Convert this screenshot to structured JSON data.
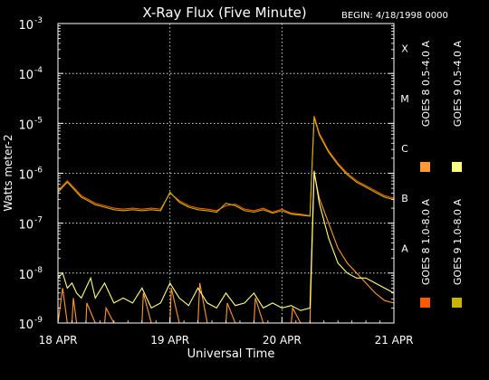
{
  "chart_data": {
    "type": "line",
    "title": "X-Ray Flux (Five Minute)",
    "begin_label": "BEGIN: 4/18/1998 0000",
    "xlabel": "Universal Time",
    "ylabel": "Watts meter-2",
    "x_ticks": [
      "18 APR",
      "19 APR",
      "20 APR",
      "21 APR"
    ],
    "xlim": [
      "1998-04-18 00:00",
      "1998-04-21 00:00"
    ],
    "y_scale": "log",
    "ylim": [
      1e-09,
      0.001
    ],
    "y_ticks": [
      {
        "label": "10",
        "exp": "-9"
      },
      {
        "label": "10",
        "exp": "-8"
      },
      {
        "label": "10",
        "exp": "-7"
      },
      {
        "label": "10",
        "exp": "-6"
      },
      {
        "label": "10",
        "exp": "-5"
      },
      {
        "label": "10",
        "exp": "-4"
      },
      {
        "label": "10",
        "exp": "-3"
      }
    ],
    "flare_classes": [
      "A",
      "B",
      "C",
      "M",
      "X"
    ],
    "grid": true,
    "legend_position": "right",
    "series": [
      {
        "name": "GOES 8 1.0-8.0 A",
        "color": "#ff5a00",
        "x_hours": [
          0,
          1,
          2,
          3,
          4,
          5,
          6,
          8,
          10,
          12,
          14,
          16,
          18,
          20,
          22,
          24,
          26,
          28,
          30,
          32,
          34,
          36,
          38,
          40,
          42,
          44,
          46,
          48,
          50,
          52,
          54,
          54.9,
          56,
          58,
          60,
          62,
          64,
          66,
          68,
          70,
          72
        ],
        "log10_flux": [
          -6.35,
          -6.25,
          -6.15,
          -6.25,
          -6.35,
          -6.45,
          -6.5,
          -6.6,
          -6.65,
          -6.7,
          -6.72,
          -6.7,
          -6.72,
          -6.7,
          -6.72,
          -6.4,
          -6.55,
          -6.65,
          -6.7,
          -6.72,
          -6.75,
          -6.65,
          -6.62,
          -6.72,
          -6.75,
          -6.7,
          -6.78,
          -6.72,
          -6.8,
          -6.82,
          -6.85,
          -4.85,
          -5.2,
          -5.55,
          -5.8,
          -6.0,
          -6.15,
          -6.25,
          -6.35,
          -6.45,
          -6.5
        ]
      },
      {
        "name": "GOES 8 0.5-4.0 A",
        "color": "#ff9a30",
        "x_hours": [
          0,
          1,
          2,
          3,
          3.3,
          4,
          6,
          6.2,
          8,
          10,
          10.3,
          12,
          14,
          18,
          18.3,
          20,
          22,
          24,
          24.3,
          26,
          28,
          30,
          30.4,
          32,
          34,
          36,
          36.3,
          38,
          40,
          42,
          42.3,
          44,
          46,
          48,
          50,
          50.3,
          52,
          54,
          54.9,
          56,
          58,
          60,
          62,
          64,
          66,
          68,
          70,
          72
        ],
        "log10_flux": [
          -9.0,
          -8.3,
          -9.0,
          -9.0,
          -8.5,
          -9.0,
          -9.0,
          -8.6,
          -9.0,
          -9.0,
          -8.7,
          -9.0,
          -9.0,
          -9.0,
          -8.4,
          -9.0,
          -9.0,
          -9.0,
          -8.3,
          -9.0,
          -9.0,
          -9.0,
          -8.2,
          -9.0,
          -9.0,
          -9.0,
          -8.6,
          -9.0,
          -9.0,
          -9.0,
          -8.5,
          -9.0,
          -9.0,
          -9.0,
          -9.0,
          -8.7,
          -9.0,
          -9.0,
          -6.0,
          -6.5,
          -7.0,
          -7.5,
          -7.8,
          -8.0,
          -8.2,
          -8.4,
          -8.55,
          -8.6
        ]
      },
      {
        "name": "GOES 9 1.0-8.0 A",
        "color": "#c8b400",
        "x_hours": [
          0,
          1,
          2,
          3,
          4,
          5,
          6,
          8,
          10,
          12,
          14,
          16,
          18,
          20,
          22,
          24,
          26,
          28,
          30,
          32,
          34,
          36,
          38,
          40,
          42,
          44,
          46,
          48,
          50,
          52,
          54,
          54.9,
          56,
          58,
          60,
          62,
          64,
          66,
          68,
          70,
          72
        ],
        "log10_flux": [
          -6.38,
          -6.28,
          -6.18,
          -6.28,
          -6.38,
          -6.48,
          -6.53,
          -6.63,
          -6.68,
          -6.73,
          -6.75,
          -6.73,
          -6.75,
          -6.73,
          -6.75,
          -6.38,
          -6.58,
          -6.68,
          -6.73,
          -6.75,
          -6.78,
          -6.6,
          -6.65,
          -6.75,
          -6.78,
          -6.73,
          -6.8,
          -6.75,
          -6.82,
          -6.84,
          -6.86,
          -4.88,
          -5.23,
          -5.58,
          -5.83,
          -6.03,
          -6.18,
          -6.28,
          -6.38,
          -6.48,
          -6.53
        ]
      },
      {
        "name": "GOES 9 0.5-4.0 A",
        "color": "#ffff80",
        "x_hours": [
          0,
          1,
          2,
          3,
          4,
          5,
          6,
          7,
          8,
          10,
          12,
          14,
          16,
          18,
          20,
          22,
          24,
          26,
          28,
          30,
          32,
          34,
          36,
          38,
          40,
          42,
          44,
          46,
          48,
          50,
          52,
          54,
          54.9,
          56,
          58,
          60,
          62,
          64,
          66,
          68,
          70,
          72
        ],
        "log10_flux": [
          -8.1,
          -8.0,
          -8.3,
          -8.2,
          -8.4,
          -8.5,
          -8.3,
          -8.1,
          -8.5,
          -8.2,
          -8.6,
          -8.5,
          -8.6,
          -8.3,
          -8.7,
          -8.6,
          -8.2,
          -8.5,
          -8.65,
          -8.3,
          -8.6,
          -8.7,
          -8.4,
          -8.65,
          -8.6,
          -8.4,
          -8.7,
          -8.6,
          -8.7,
          -8.65,
          -8.75,
          -8.7,
          -5.95,
          -6.6,
          -7.3,
          -7.8,
          -8.0,
          -8.1,
          -8.1,
          -8.2,
          -8.3,
          -8.4
        ]
      }
    ]
  }
}
